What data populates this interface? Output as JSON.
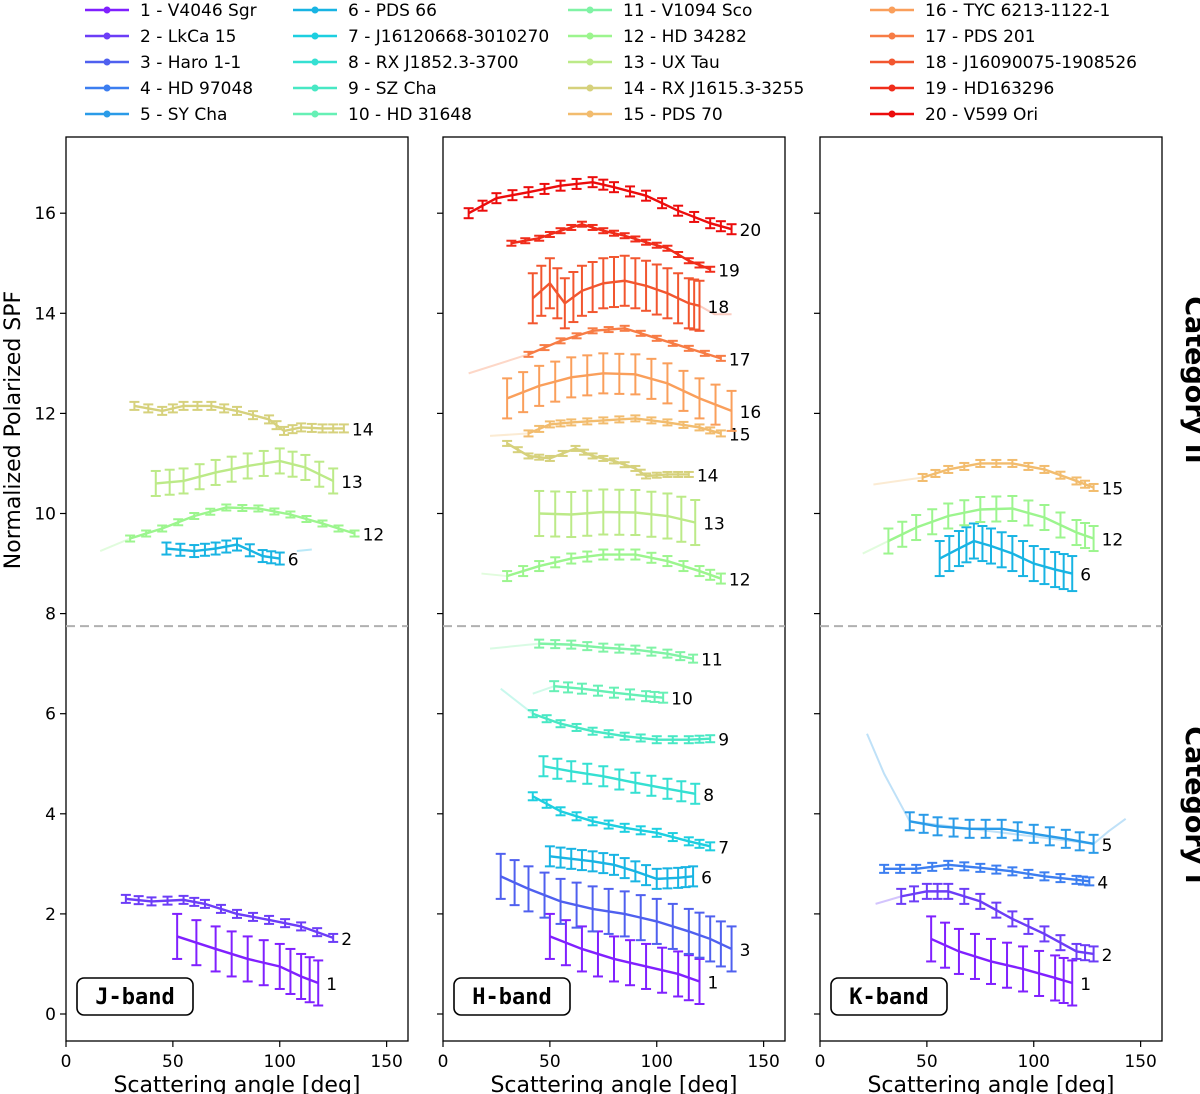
{
  "legend": [
    {
      "label": "1 - V4046 Sgr",
      "color": "#8020ff"
    },
    {
      "label": "2 - LkCa 15",
      "color": "#6c3df7"
    },
    {
      "label": "3 - Haro 1-1",
      "color": "#4f60ef"
    },
    {
      "label": "4 - HD 97048",
      "color": "#3c7ef0"
    },
    {
      "label": "5 - SY Cha",
      "color": "#2a9be8"
    },
    {
      "label": "6 - PDS 66",
      "color": "#18b4e3"
    },
    {
      "label": "7 - J16120668-3010270",
      "color": "#1dcfe0"
    },
    {
      "label": "8 - RX J1852.3-3700",
      "color": "#35e0d2"
    },
    {
      "label": "9 - SZ Cha",
      "color": "#48e8c4"
    },
    {
      "label": "10 - HD 31648",
      "color": "#66f0b5"
    },
    {
      "label": "11 - V1094 Sco",
      "color": "#80f3a5"
    },
    {
      "label": "12 - HD 34282",
      "color": "#9cf58e"
    },
    {
      "label": "13 - UX Tau",
      "color": "#bcea88"
    },
    {
      "label": "14 - RX J1615.3-3255",
      "color": "#d6d17c"
    },
    {
      "label": "15 - PDS 70",
      "color": "#f2bc6e"
    },
    {
      "label": "16 - TYC 6213-1122-1",
      "color": "#fa9f5b"
    },
    {
      "label": "17 - PDS 201",
      "color": "#f77c45"
    },
    {
      "label": "18 - J16090075-1908526",
      "color": "#f2562f"
    },
    {
      "label": "19 - HD163296",
      "color": "#f02c1a"
    },
    {
      "label": "20 - V599 Ori",
      "color": "#ec0c0c"
    }
  ],
  "text": {
    "ylabel": "Normalized Polarized SPF",
    "xlabel": "Scattering angle [deg]",
    "cat2": "Category II",
    "cat1": "Category I"
  },
  "chart_data": [
    {
      "type": "line",
      "band_label": "J-band",
      "xlim": [
        0,
        160
      ],
      "ylim": [
        -0.3,
        17.5
      ],
      "xticks": [
        0,
        50,
        100,
        150
      ],
      "yticks": [
        0,
        2,
        4,
        6,
        8,
        10,
        12,
        14,
        16
      ],
      "xlabel": "Scattering angle [deg]",
      "ylabel": "Normalized Polarized SPF",
      "category_divider_y": 7.75,
      "series": [
        {
          "id": 1,
          "x": [
            52,
            70,
            85,
            100,
            110,
            118
          ],
          "y": [
            1.55,
            1.3,
            1.1,
            0.95,
            0.75,
            0.62
          ],
          "err": 0.45
        },
        {
          "id": 2,
          "x": [
            28,
            40,
            55,
            65,
            80,
            95,
            110,
            125
          ],
          "y": [
            2.3,
            2.25,
            2.28,
            2.2,
            2.0,
            1.88,
            1.75,
            1.52
          ],
          "err": 0.08
        },
        {
          "id": 6,
          "x": [
            47,
            60,
            70,
            80,
            92,
            100
          ],
          "y": [
            9.3,
            9.25,
            9.3,
            9.38,
            9.15,
            9.1
          ],
          "err": 0.12,
          "faint_tail": {
            "x": [
              108,
              115
            ],
            "y": [
              9.25,
              9.28
            ]
          }
        },
        {
          "id": 12,
          "x": [
            30,
            45,
            60,
            75,
            90,
            105,
            120,
            135
          ],
          "y": [
            9.5,
            9.7,
            9.95,
            10.12,
            10.1,
            9.98,
            9.8,
            9.6
          ],
          "err": 0.06,
          "faint_tail": {
            "x": [
              16,
              30
            ],
            "y": [
              9.25,
              9.5
            ]
          }
        },
        {
          "id": 13,
          "x": [
            42,
            55,
            70,
            85,
            100,
            112,
            125
          ],
          "y": [
            10.6,
            10.65,
            10.82,
            10.95,
            11.05,
            10.92,
            10.65
          ],
          "err": 0.25
        },
        {
          "id": 14,
          "x": [
            32,
            45,
            55,
            68,
            80,
            95,
            102,
            110,
            120,
            130
          ],
          "y": [
            12.15,
            12.05,
            12.15,
            12.15,
            12.05,
            11.88,
            11.65,
            11.72,
            11.7,
            11.7
          ],
          "err": 0.08
        }
      ]
    },
    {
      "type": "line",
      "band_label": "H-band",
      "xlim": [
        0,
        160
      ],
      "ylim": [
        -0.3,
        17.5
      ],
      "xticks": [
        0,
        50,
        100,
        150
      ],
      "yticks": [
        0,
        2,
        4,
        6,
        8,
        10,
        12,
        14,
        16
      ],
      "xlabel": "Scattering angle [deg]",
      "category_divider_y": 7.75,
      "series": [
        {
          "id": 1,
          "x": [
            50,
            65,
            80,
            95,
            110,
            120
          ],
          "y": [
            1.55,
            1.3,
            1.1,
            0.95,
            0.8,
            0.65
          ],
          "err": 0.45
        },
        {
          "id": 3,
          "x": [
            27,
            40,
            55,
            70,
            85,
            100,
            115,
            125,
            135
          ],
          "y": [
            2.75,
            2.5,
            2.25,
            2.1,
            2.0,
            1.85,
            1.65,
            1.5,
            1.3
          ],
          "err": 0.45
        },
        {
          "id": 6,
          "x": [
            50,
            60,
            70,
            80,
            90,
            100,
            110,
            117
          ],
          "y": [
            3.15,
            3.1,
            3.05,
            2.98,
            2.85,
            2.7,
            2.72,
            2.75
          ],
          "err": 0.2
        },
        {
          "id": 7,
          "x": [
            42,
            55,
            70,
            85,
            100,
            115,
            125
          ],
          "y": [
            4.35,
            4.05,
            3.85,
            3.72,
            3.62,
            3.45,
            3.35
          ],
          "err": 0.08
        },
        {
          "id": 8,
          "x": [
            47,
            60,
            75,
            90,
            105,
            118
          ],
          "y": [
            4.95,
            4.85,
            4.75,
            4.62,
            4.5,
            4.4
          ],
          "err": 0.2
        },
        {
          "id": 9,
          "x": [
            42,
            55,
            70,
            85,
            100,
            115,
            125
          ],
          "y": [
            6.0,
            5.8,
            5.65,
            5.55,
            5.48,
            5.48,
            5.5
          ],
          "err": 0.07,
          "faint_tail": {
            "x": [
              27,
              42
            ],
            "y": [
              6.5,
              6.0
            ]
          }
        },
        {
          "id": 10,
          "x": [
            52,
            65,
            80,
            95,
            103
          ],
          "y": [
            6.55,
            6.5,
            6.42,
            6.35,
            6.32
          ],
          "err": 0.1,
          "faint_tail": {
            "x": [
              42,
              52
            ],
            "y": [
              6.4,
              6.55
            ]
          }
        },
        {
          "id": 11,
          "x": [
            45,
            60,
            75,
            90,
            105,
            117
          ],
          "y": [
            7.4,
            7.38,
            7.32,
            7.28,
            7.2,
            7.1
          ],
          "err": 0.08,
          "faint_tail": {
            "x": [
              22,
              45
            ],
            "y": [
              7.3,
              7.4
            ]
          }
        },
        {
          "id": 12,
          "x": [
            30,
            45,
            60,
            75,
            90,
            105,
            120,
            130
          ],
          "y": [
            8.75,
            8.95,
            9.1,
            9.18,
            9.18,
            9.05,
            8.85,
            8.7
          ],
          "err": 0.1,
          "faint_tail": {
            "x": [
              18,
              30
            ],
            "y": [
              8.8,
              8.75
            ]
          }
        },
        {
          "id": 13,
          "x": [
            45,
            60,
            75,
            90,
            105,
            118
          ],
          "y": [
            10.0,
            9.98,
            10.03,
            10.02,
            9.95,
            9.82
          ],
          "err": 0.45
        },
        {
          "id": 14,
          "x": [
            30,
            40,
            50,
            62,
            70,
            80,
            90,
            95,
            105,
            115
          ],
          "y": [
            11.4,
            11.15,
            11.1,
            11.3,
            11.15,
            11.05,
            10.9,
            10.75,
            10.78,
            10.78
          ],
          "err": 0.05
        },
        {
          "id": 15,
          "x": [
            40,
            50,
            60,
            75,
            90,
            105,
            120,
            130
          ],
          "y": [
            11.6,
            11.78,
            11.82,
            11.86,
            11.9,
            11.82,
            11.72,
            11.6
          ],
          "err": 0.06,
          "faint_tail": {
            "x": [
              22,
              40
            ],
            "y": [
              11.55,
              11.6
            ]
          }
        },
        {
          "id": 16,
          "x": [
            30,
            45,
            60,
            75,
            90,
            105,
            120,
            135
          ],
          "y": [
            12.3,
            12.55,
            12.72,
            12.8,
            12.78,
            12.6,
            12.3,
            12.05
          ],
          "err": 0.4
        },
        {
          "id": 17,
          "x": [
            40,
            55,
            70,
            85,
            100,
            115,
            130
          ],
          "y": [
            13.18,
            13.45,
            13.65,
            13.7,
            13.5,
            13.3,
            13.1
          ],
          "err": 0.05,
          "faint_tail": {
            "x": [
              12,
              40
            ],
            "y": [
              12.8,
              13.18
            ]
          }
        },
        {
          "id": 18,
          "x": [
            42,
            50,
            57,
            65,
            75,
            85,
            95,
            105,
            115,
            120
          ],
          "y": [
            14.3,
            14.6,
            14.2,
            14.45,
            14.6,
            14.65,
            14.55,
            14.4,
            14.2,
            14.15
          ],
          "err": 0.5,
          "faint_tail": {
            "x": [
              120,
              127,
              135
            ],
            "y": [
              14.15,
              13.98,
              13.98
            ]
          }
        },
        {
          "id": 19,
          "x": [
            32,
            45,
            55,
            65,
            75,
            85,
            95,
            105,
            115,
            125
          ],
          "y": [
            15.4,
            15.5,
            15.65,
            15.78,
            15.65,
            15.55,
            15.42,
            15.3,
            15.05,
            14.88
          ],
          "err": 0.05
        },
        {
          "id": 20,
          "x": [
            12,
            25,
            40,
            55,
            70,
            80,
            95,
            110,
            125,
            135
          ],
          "y": [
            16.0,
            16.3,
            16.42,
            16.55,
            16.62,
            16.52,
            16.35,
            16.05,
            15.8,
            15.68
          ],
          "err": 0.1
        }
      ]
    },
    {
      "type": "line",
      "band_label": "K-band",
      "xlim": [
        0,
        160
      ],
      "ylim": [
        -0.3,
        17.5
      ],
      "xticks": [
        0,
        50,
        100,
        150
      ],
      "yticks": [
        0,
        2,
        4,
        6,
        8,
        10,
        12,
        14,
        16
      ],
      "xlabel": "Scattering angle [deg]",
      "category_divider_y": 7.75,
      "series": [
        {
          "id": 1,
          "x": [
            52,
            65,
            80,
            95,
            110,
            118
          ],
          "y": [
            1.5,
            1.25,
            1.05,
            0.9,
            0.72,
            0.62
          ],
          "err": 0.45
        },
        {
          "id": 2,
          "x": [
            38,
            50,
            60,
            75,
            90,
            105,
            120,
            128
          ],
          "y": [
            2.35,
            2.45,
            2.45,
            2.25,
            1.9,
            1.6,
            1.25,
            1.2
          ],
          "err": 0.15,
          "faint_tail": {
            "x": [
              26,
              38
            ],
            "y": [
              2.2,
              2.35
            ]
          }
        },
        {
          "id": 4,
          "x": [
            30,
            45,
            60,
            75,
            90,
            105,
            120,
            126
          ],
          "y": [
            2.9,
            2.9,
            2.98,
            2.92,
            2.85,
            2.75,
            2.68,
            2.65
          ],
          "err": 0.08
        },
        {
          "id": 5,
          "x": [
            42,
            55,
            70,
            85,
            100,
            115,
            128
          ],
          "y": [
            3.85,
            3.75,
            3.7,
            3.7,
            3.6,
            3.5,
            3.4
          ],
          "err": 0.18,
          "faint_tail": {
            "x": [
              22,
              30,
              42,
              128,
              135,
              143
            ],
            "y": [
              5.6,
              4.8,
              3.85,
              3.4,
              3.65,
              3.9
            ]
          }
        },
        {
          "id": 6,
          "x": [
            56,
            65,
            72,
            80,
            90,
            100,
            110,
            118
          ],
          "y": [
            9.1,
            9.3,
            9.45,
            9.35,
            9.2,
            9.0,
            8.88,
            8.8
          ],
          "err": 0.35
        },
        {
          "id": 12,
          "x": [
            32,
            45,
            60,
            75,
            90,
            105,
            120,
            128
          ],
          "y": [
            9.45,
            9.72,
            9.95,
            10.08,
            10.1,
            9.92,
            9.62,
            9.5
          ],
          "err": 0.25,
          "faint_tail": {
            "x": [
              20,
              32
            ],
            "y": [
              9.2,
              9.45
            ]
          }
        },
        {
          "id": 15,
          "x": [
            48,
            60,
            75,
            90,
            105,
            120,
            128
          ],
          "y": [
            10.72,
            10.88,
            11.0,
            11.0,
            10.88,
            10.65,
            10.52
          ],
          "err": 0.07,
          "faint_tail": {
            "x": [
              25,
              48
            ],
            "y": [
              10.58,
              10.72
            ]
          }
        }
      ]
    }
  ]
}
